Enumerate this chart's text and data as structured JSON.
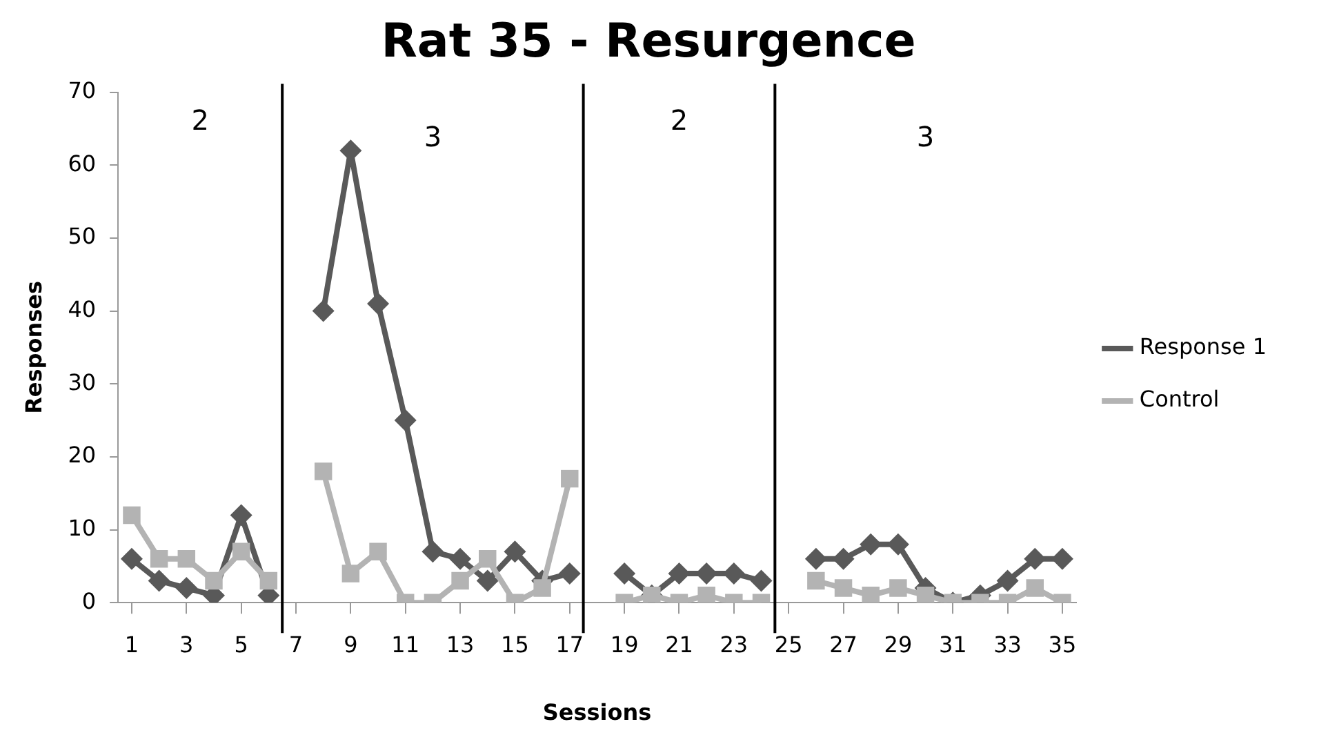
{
  "chart_data": {
    "type": "line",
    "title": "Rat 35 - Resurgence",
    "xlabel": "Sessions",
    "ylabel": "Responses",
    "x": [
      1,
      2,
      3,
      4,
      5,
      6,
      7,
      8,
      9,
      10,
      11,
      12,
      13,
      14,
      15,
      16,
      17,
      18,
      19,
      20,
      21,
      22,
      23,
      24,
      25,
      26,
      27,
      28,
      29,
      30,
      31,
      32,
      33,
      34,
      35
    ],
    "series": [
      {
        "name": "Response 1",
        "color": "#595959",
        "marker": "diamond",
        "values": [
          6,
          3,
          2,
          1,
          12,
          1,
          null,
          40,
          62,
          41,
          25,
          7,
          6,
          3,
          7,
          3,
          4,
          null,
          4,
          1,
          4,
          4,
          4,
          3,
          null,
          6,
          6,
          8,
          8,
          2,
          0,
          1,
          3,
          6,
          6
        ]
      },
      {
        "name": "Control",
        "color": "#b3b3b3",
        "marker": "square",
        "values": [
          12,
          6,
          6,
          3,
          7,
          3,
          null,
          18,
          4,
          7,
          0,
          0,
          3,
          6,
          0,
          2,
          17,
          null,
          0,
          1,
          0,
          1,
          0,
          0,
          null,
          3,
          2,
          1,
          2,
          1,
          0,
          0,
          0,
          2,
          0
        ]
      }
    ],
    "xlim": [
      0.5,
      35.5
    ],
    "xticks": [
      1,
      3,
      5,
      7,
      9,
      11,
      13,
      15,
      17,
      19,
      21,
      23,
      25,
      27,
      29,
      31,
      33,
      35
    ],
    "ylim": [
      0,
      70
    ],
    "yticks": [
      0,
      10,
      20,
      30,
      40,
      50,
      60,
      70
    ],
    "grid": false,
    "legend": "right",
    "line_style": "solid",
    "ref_lines": [
      {
        "axis": "x",
        "value": 6.5,
        "color": "#000000"
      },
      {
        "axis": "x",
        "value": 17.5,
        "color": "#000000"
      },
      {
        "axis": "x",
        "value": 24.5,
        "color": "#000000"
      }
    ],
    "annotations": [
      "2",
      "3",
      "2",
      "3"
    ]
  }
}
